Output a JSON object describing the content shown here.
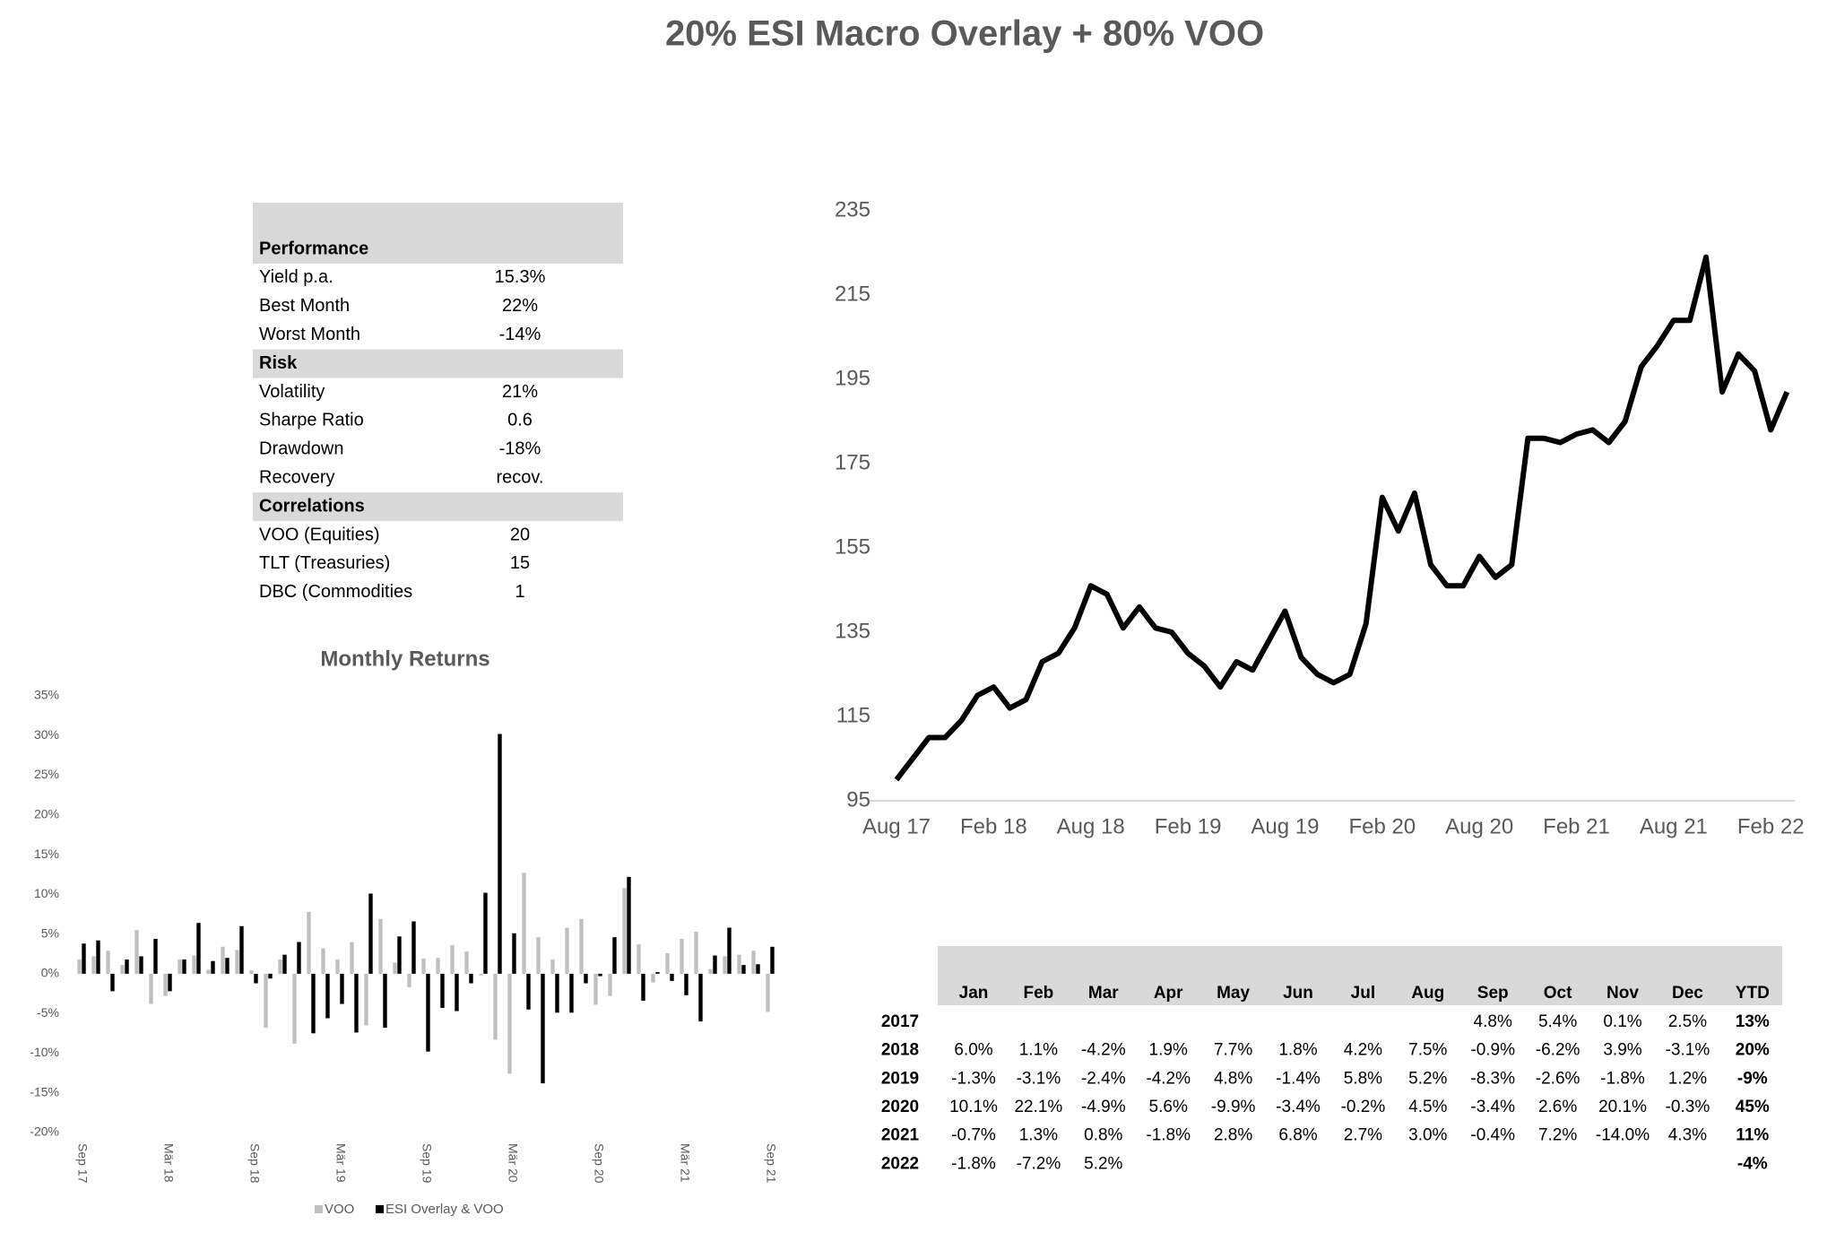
{
  "title": "20% ESI Macro Overlay + 80% VOO",
  "summary_table": {
    "sections": [
      {
        "title": "Performance",
        "rows": [
          [
            "Yield p.a.",
            "15.3%"
          ],
          [
            "Best Month",
            "22%"
          ],
          [
            "Worst Month",
            "-14%"
          ]
        ]
      },
      {
        "title": "Risk",
        "rows": [
          [
            "Volatility",
            "21%"
          ],
          [
            "Sharpe Ratio",
            "0.6"
          ],
          [
            "Drawdown",
            "-18%"
          ],
          [
            "Recovery",
            "recov."
          ]
        ]
      },
      {
        "title": "Correlations",
        "rows": [
          [
            "VOO (Equities)",
            "20"
          ],
          [
            "TLT (Treasuries)",
            "15"
          ],
          [
            "DBC (Commodities",
            "1"
          ]
        ]
      }
    ]
  },
  "chart_data": [
    {
      "type": "bar",
      "title": "Monthly Returns",
      "categories": [
        "Sep 17",
        null,
        null,
        null,
        null,
        null,
        "Mär 18",
        null,
        null,
        null,
        null,
        null,
        "Sep 18",
        null,
        null,
        null,
        null,
        null,
        "Mär 19",
        null,
        null,
        null,
        null,
        null,
        "Sep 19",
        null,
        null,
        null,
        null,
        null,
        "Mär 20",
        null,
        null,
        null,
        null,
        null,
        "Sep 20",
        null,
        null,
        null,
        null,
        null,
        "Mär 21",
        null,
        null,
        null,
        null,
        null,
        "Sep 21"
      ],
      "series": [
        {
          "name": "VOO",
          "color": "#bfbfbf",
          "values": [
            1.8,
            2.2,
            2.9,
            1.1,
            5.5,
            -3.8,
            -2.8,
            1.8,
            2.3,
            0.5,
            3.4,
            3.0,
            0.4,
            -6.8,
            1.8,
            -8.8,
            7.8,
            3.2,
            1.8,
            4.0,
            -6.5,
            6.9,
            1.4,
            -1.7,
            1.9,
            2.0,
            3.6,
            2.8,
            -0.2,
            -8.3,
            -12.6,
            12.7,
            4.6,
            1.8,
            5.8,
            6.9,
            -3.9,
            -2.8,
            10.8,
            3.7,
            -1.1,
            2.6,
            4.4,
            5.3,
            0.6,
            2.2,
            2.4,
            2.9,
            -4.8
          ]
        },
        {
          "name": "ESI Overlay & VOO",
          "color": "#000000",
          "values": [
            3.8,
            4.2,
            -2.2,
            1.8,
            2.2,
            4.4,
            -2.2,
            1.8,
            6.4,
            1.6,
            2.0,
            6.0,
            -1.2,
            -0.6,
            2.4,
            4.0,
            -7.5,
            -5.6,
            -3.8,
            -7.4,
            10.1,
            -6.8,
            4.7,
            6.6,
            -9.8,
            -4.3,
            -4.7,
            -1.2,
            10.2,
            30.2,
            5.1,
            -4.5,
            -13.8,
            -4.9,
            -4.9,
            -1.2,
            -0.3,
            4.6,
            12.2,
            -3.4,
            0.2,
            -0.9,
            -2.7,
            -6.0,
            2.3,
            5.8,
            1.1,
            1.2,
            3.4
          ]
        }
      ],
      "ylim": [
        -20,
        35
      ],
      "yticks": [
        {
          "value": -20,
          "label": "-20%"
        },
        {
          "value": -15,
          "label": "-15%"
        },
        {
          "value": -10,
          "label": "-10%"
        },
        {
          "value": -5,
          "label": "-5%"
        },
        {
          "value": 0,
          "label": "0%"
        },
        {
          "value": 5,
          "label": "5%"
        },
        {
          "value": 10,
          "label": "10%"
        },
        {
          "value": 15,
          "label": "15%"
        },
        {
          "value": 20,
          "label": "20%"
        },
        {
          "value": 25,
          "label": "25%"
        },
        {
          "value": 30,
          "label": "30%"
        },
        {
          "value": 35,
          "label": "35%"
        }
      ],
      "grid": false,
      "legend": "bottom"
    },
    {
      "type": "line",
      "categories": [
        "Aug 17",
        null,
        null,
        null,
        null,
        null,
        "Feb 18",
        null,
        null,
        null,
        null,
        null,
        "Aug 18",
        null,
        null,
        null,
        null,
        null,
        "Feb 19",
        null,
        null,
        null,
        null,
        null,
        "Aug 19",
        null,
        null,
        null,
        null,
        null,
        "Feb 20",
        null,
        null,
        null,
        null,
        null,
        "Aug 20",
        null,
        null,
        null,
        null,
        null,
        "Feb 21",
        null,
        null,
        null,
        null,
        null,
        "Aug 21",
        null,
        null,
        null,
        null,
        null,
        "Feb 22",
        null
      ],
      "values": [
        100,
        105,
        110,
        110,
        114,
        120,
        122,
        117,
        119,
        128,
        130,
        136,
        146,
        144,
        136,
        141,
        136,
        135,
        130,
        127,
        122,
        128,
        126,
        133,
        140,
        129,
        125,
        123,
        125,
        137,
        167,
        159,
        168,
        151,
        146,
        146,
        153,
        148,
        151,
        181,
        181,
        180,
        182,
        183,
        180,
        185,
        198,
        203,
        209,
        209,
        224,
        192,
        201,
        197,
        183,
        192
      ],
      "color": "#000000",
      "ylim": [
        95,
        235
      ],
      "yticks": [
        95,
        115,
        135,
        155,
        175,
        195,
        215,
        235
      ],
      "grid": false
    }
  ],
  "returns_table": {
    "columns": [
      "Jan",
      "Feb",
      "Mar",
      "Apr",
      "May",
      "Jun",
      "Jul",
      "Aug",
      "Sep",
      "Oct",
      "Nov",
      "Dec",
      "YTD"
    ],
    "rows": [
      {
        "year": "2017",
        "cells": [
          null,
          null,
          null,
          null,
          null,
          null,
          null,
          null,
          "4.8%",
          "5.4%",
          "0.1%",
          "2.5%",
          "13%"
        ]
      },
      {
        "year": "2018",
        "cells": [
          "6.0%",
          "1.1%",
          "-4.2%",
          "1.9%",
          "7.7%",
          "1.8%",
          "4.2%",
          "7.5%",
          "-0.9%",
          "-6.2%",
          "3.9%",
          "-3.1%",
          "20%"
        ]
      },
      {
        "year": "2019",
        "cells": [
          "-1.3%",
          "-3.1%",
          "-2.4%",
          "-4.2%",
          "4.8%",
          "-1.4%",
          "5.8%",
          "5.2%",
          "-8.3%",
          "-2.6%",
          "-1.8%",
          "1.2%",
          "-9%"
        ]
      },
      {
        "year": "2020",
        "cells": [
          "10.1%",
          "22.1%",
          "-4.9%",
          "5.6%",
          "-9.9%",
          "-3.4%",
          "-0.2%",
          "4.5%",
          "-3.4%",
          "2.6%",
          "20.1%",
          "-0.3%",
          "45%"
        ]
      },
      {
        "year": "2021",
        "cells": [
          "-0.7%",
          "1.3%",
          "0.8%",
          "-1.8%",
          "2.8%",
          "6.8%",
          "2.7%",
          "3.0%",
          "-0.4%",
          "7.2%",
          "-14.0%",
          "4.3%",
          "11%"
        ]
      },
      {
        "year": "2022",
        "cells": [
          "-1.8%",
          "-7.2%",
          "5.2%",
          null,
          null,
          null,
          null,
          null,
          null,
          null,
          null,
          null,
          "-4%"
        ]
      }
    ]
  }
}
